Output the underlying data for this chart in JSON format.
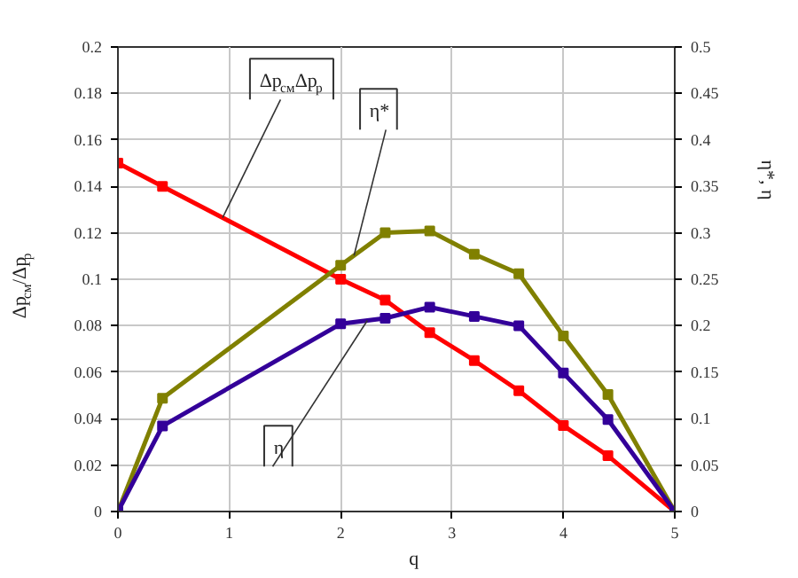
{
  "chart_data": {
    "type": "line",
    "xlabel": "q",
    "ylabel": "Δp$_{см}$/Δp$_{р}$",
    "y2label": "η*, η",
    "marker": "square",
    "line_style": "solid",
    "grid": true,
    "xlim": [
      0,
      5
    ],
    "xticks": [
      0,
      1,
      2,
      3,
      4,
      5
    ],
    "ylim": [
      0,
      0.2
    ],
    "yticks": [
      0,
      0.02,
      0.04,
      0.06,
      0.08,
      0.1,
      0.12,
      0.14,
      0.16,
      0.18,
      0.2
    ],
    "y2lim": [
      0,
      0.5
    ],
    "y2ticks": [
      0,
      0.05,
      0.1,
      0.15,
      0.2,
      0.25,
      0.3,
      0.35,
      0.4,
      0.45,
      0.5
    ],
    "series": [
      {
        "name": "Δp$_{см}$Δp$_{р}$",
        "color": "#ff0000",
        "x": [
          0,
          0.4,
          2.0,
          2.4,
          2.8,
          3.2,
          3.6,
          4.0,
          4.4,
          5.0
        ],
        "values": [
          0.15,
          0.14,
          0.1,
          0.091,
          0.077,
          0.065,
          0.052,
          0.037,
          0.024,
          0
        ]
      },
      {
        "name": "η*",
        "color": "#808000",
        "axis": "y2",
        "x": [
          0,
          0.4,
          2.0,
          2.4,
          2.8,
          3.2,
          3.6,
          4.0,
          4.4,
          5.0
        ],
        "values": [
          0,
          0.122,
          0.265,
          0.3,
          0.302,
          0.277,
          0.256,
          0.189,
          0.126,
          0
        ]
      },
      {
        "name": "η",
        "color": "#330099",
        "axis": "y2",
        "x": [
          0,
          0.4,
          2.0,
          2.4,
          2.8,
          3.2,
          3.6,
          4.0,
          4.4,
          5.0
        ],
        "values": [
          0,
          0.092,
          0.202,
          0.208,
          0.22,
          0.21,
          0.2,
          0.149,
          0.099,
          0
        ]
      }
    ]
  }
}
